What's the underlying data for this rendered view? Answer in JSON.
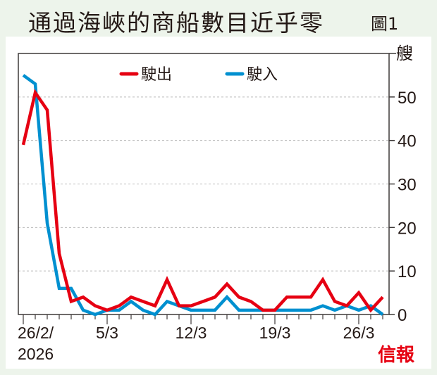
{
  "title": "通過海峽的商船數目近乎零",
  "figure_label": "圖1",
  "logo": "信報",
  "chart_data": {
    "type": "line",
    "title": "通過海峽的商船數目近乎零",
    "ylabel": "艘",
    "xlabel": "",
    "ylim": [
      0,
      60
    ],
    "yticks": [
      0,
      10,
      20,
      30,
      40,
      50
    ],
    "grid": true,
    "legend_position": "top",
    "x_start": "26/2/2026",
    "xtick_labels": [
      {
        "day_index": 0,
        "label": "26/2/",
        "label2": "2026"
      },
      {
        "day_index": 7,
        "label": "5/3"
      },
      {
        "day_index": 14,
        "label": "12/3"
      },
      {
        "day_index": 21,
        "label": "19/3"
      },
      {
        "day_index": 28,
        "label": "26/3"
      }
    ],
    "series": [
      {
        "name": "駛出",
        "color": "#e60012",
        "values": [
          39,
          51,
          47,
          14,
          3,
          4,
          2,
          1,
          2,
          4,
          3,
          2,
          8,
          2,
          2,
          3,
          4,
          7,
          4,
          3,
          1,
          1,
          4,
          4,
          4,
          8,
          3,
          2,
          5,
          1,
          4
        ]
      },
      {
        "name": "駛入",
        "color": "#0090d0",
        "values": [
          55,
          53,
          21,
          6,
          6,
          1,
          0,
          1,
          1,
          3,
          1,
          0,
          3,
          2,
          1,
          1,
          1,
          4,
          1,
          1,
          1,
          1,
          1,
          1,
          1,
          2,
          1,
          2,
          1,
          2,
          0
        ]
      }
    ]
  }
}
